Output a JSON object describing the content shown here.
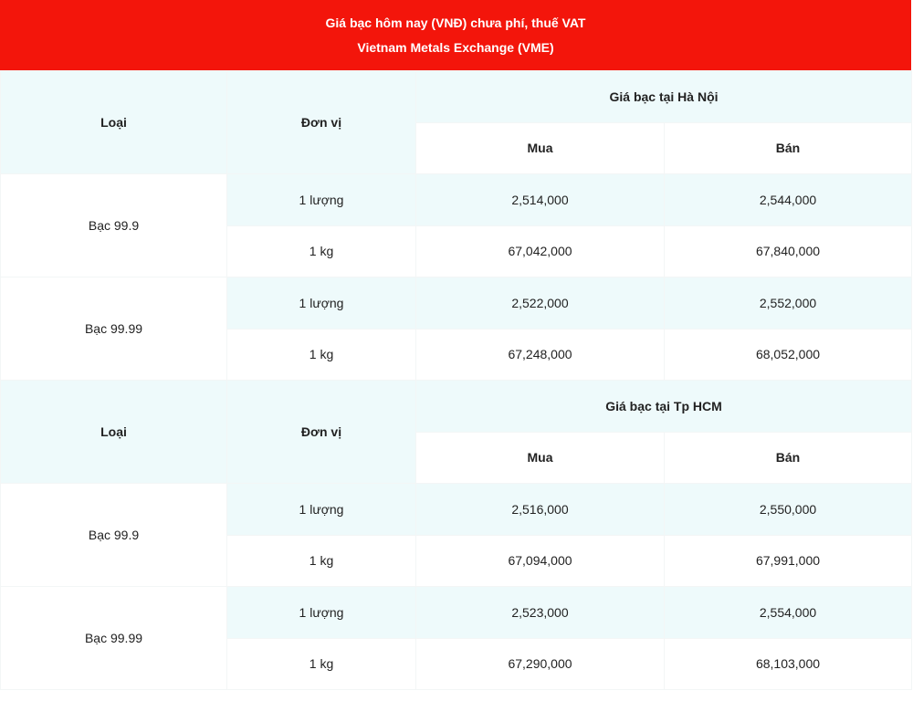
{
  "header": {
    "title": "Giá bạc hôm nay (VNĐ) chưa phí, thuế VAT",
    "subtitle": "Vietnam Metals Exchange (VME)"
  },
  "sections": [
    {
      "columns": {
        "type": "Loại",
        "unit": "Đơn vị",
        "group": "Giá bạc tại Hà Nội",
        "buy": "Mua",
        "sell": "Bán"
      },
      "rows": [
        {
          "type": "Bạc 99.9",
          "items": [
            {
              "unit": "1 lượng",
              "buy": "2,514,000",
              "sell": "2,544,000"
            },
            {
              "unit": "1 kg",
              "buy": "67,042,000",
              "sell": "67,840,000"
            }
          ]
        },
        {
          "type": "Bạc 99.99",
          "items": [
            {
              "unit": "1 lượng",
              "buy": "2,522,000",
              "sell": "2,552,000"
            },
            {
              "unit": "1 kg",
              "buy": "67,248,000",
              "sell": "68,052,000"
            }
          ]
        }
      ]
    },
    {
      "columns": {
        "type": "Loại",
        "unit": "Đơn vị",
        "group": "Giá bạc tại Tp HCM",
        "buy": "Mua",
        "sell": "Bán"
      },
      "rows": [
        {
          "type": "Bạc 99.9",
          "items": [
            {
              "unit": "1 lượng",
              "buy": "2,516,000",
              "sell": "2,550,000"
            },
            {
              "unit": "1 kg",
              "buy": "67,094,000",
              "sell": "67,991,000"
            }
          ]
        },
        {
          "type": "Bạc 99.99",
          "items": [
            {
              "unit": "1 lượng",
              "buy": "2,523,000",
              "sell": "2,554,000"
            },
            {
              "unit": "1 kg",
              "buy": "67,290,000",
              "sell": "68,103,000"
            }
          ]
        }
      ]
    }
  ]
}
